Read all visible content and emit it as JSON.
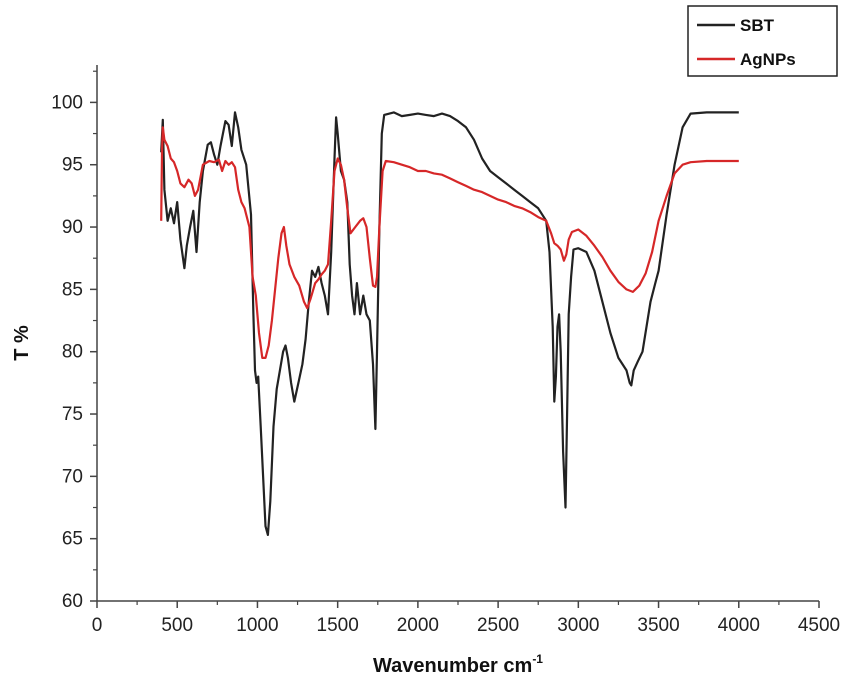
{
  "chart_data": {
    "type": "line",
    "xlabel": "Wavenumber cm",
    "xlabel_superscript": "-1",
    "ylabel": "T %",
    "xlim": [
      0,
      4500
    ],
    "ylim": [
      60,
      103
    ],
    "x_ticks": [
      0,
      500,
      1000,
      1500,
      2000,
      2500,
      3000,
      3500,
      4000,
      4500
    ],
    "y_ticks": [
      60,
      65,
      70,
      75,
      80,
      85,
      90,
      95,
      100
    ],
    "legend_position": "top-right",
    "grid": false,
    "series": [
      {
        "name": "SBT",
        "color": "#222222",
        "points": [
          [
            400,
            96
          ],
          [
            410,
            98.6
          ],
          [
            420,
            93
          ],
          [
            440,
            90.5
          ],
          [
            460,
            91.5
          ],
          [
            480,
            90.3
          ],
          [
            500,
            92
          ],
          [
            520,
            89
          ],
          [
            545,
            86.7
          ],
          [
            560,
            88.5
          ],
          [
            580,
            90
          ],
          [
            600,
            91.3
          ],
          [
            620,
            88
          ],
          [
            640,
            92
          ],
          [
            660,
            94.5
          ],
          [
            690,
            96.6
          ],
          [
            710,
            96.8
          ],
          [
            730,
            95.8
          ],
          [
            750,
            95
          ],
          [
            770,
            96.5
          ],
          [
            800,
            98.5
          ],
          [
            820,
            98.2
          ],
          [
            840,
            96.5
          ],
          [
            860,
            99.2
          ],
          [
            880,
            98
          ],
          [
            900,
            96.2
          ],
          [
            930,
            95
          ],
          [
            960,
            91
          ],
          [
            975,
            83
          ],
          [
            985,
            78.5
          ],
          [
            995,
            77.5
          ],
          [
            1005,
            78
          ],
          [
            1020,
            74
          ],
          [
            1035,
            70
          ],
          [
            1050,
            66
          ],
          [
            1065,
            65.3
          ],
          [
            1080,
            68
          ],
          [
            1100,
            74
          ],
          [
            1120,
            77
          ],
          [
            1140,
            78.5
          ],
          [
            1160,
            80
          ],
          [
            1175,
            80.5
          ],
          [
            1190,
            79.5
          ],
          [
            1210,
            77.5
          ],
          [
            1230,
            76
          ],
          [
            1255,
            77.5
          ],
          [
            1280,
            79
          ],
          [
            1300,
            81
          ],
          [
            1320,
            84
          ],
          [
            1340,
            86.5
          ],
          [
            1360,
            86
          ],
          [
            1380,
            86.8
          ],
          [
            1400,
            85.5
          ],
          [
            1420,
            84.5
          ],
          [
            1440,
            83
          ],
          [
            1460,
            88
          ],
          [
            1480,
            95.5
          ],
          [
            1490,
            98.8
          ],
          [
            1500,
            97.5
          ],
          [
            1520,
            94.5
          ],
          [
            1540,
            93.8
          ],
          [
            1560,
            92
          ],
          [
            1575,
            87
          ],
          [
            1590,
            84.5
          ],
          [
            1605,
            83
          ],
          [
            1620,
            85.5
          ],
          [
            1640,
            83
          ],
          [
            1660,
            84.5
          ],
          [
            1680,
            83
          ],
          [
            1700,
            82.5
          ],
          [
            1720,
            79
          ],
          [
            1735,
            73.8
          ],
          [
            1745,
            80
          ],
          [
            1760,
            90
          ],
          [
            1775,
            97.5
          ],
          [
            1790,
            99
          ],
          [
            1850,
            99.2
          ],
          [
            1900,
            98.9
          ],
          [
            1950,
            99
          ],
          [
            2000,
            99.1
          ],
          [
            2050,
            99
          ],
          [
            2100,
            98.9
          ],
          [
            2150,
            99.1
          ],
          [
            2200,
            98.9
          ],
          [
            2250,
            98.5
          ],
          [
            2300,
            98
          ],
          [
            2350,
            97
          ],
          [
            2400,
            95.5
          ],
          [
            2450,
            94.5
          ],
          [
            2500,
            94
          ],
          [
            2550,
            93.5
          ],
          [
            2600,
            93
          ],
          [
            2650,
            92.5
          ],
          [
            2700,
            92
          ],
          [
            2750,
            91.5
          ],
          [
            2800,
            90.5
          ],
          [
            2820,
            88
          ],
          [
            2840,
            82
          ],
          [
            2850,
            76
          ],
          [
            2860,
            78
          ],
          [
            2870,
            82
          ],
          [
            2880,
            83
          ],
          [
            2890,
            80
          ],
          [
            2905,
            72
          ],
          [
            2920,
            67.5
          ],
          [
            2930,
            75
          ],
          [
            2940,
            83
          ],
          [
            2955,
            86
          ],
          [
            2970,
            88.2
          ],
          [
            3000,
            88.3
          ],
          [
            3050,
            88
          ],
          [
            3100,
            86.5
          ],
          [
            3150,
            84
          ],
          [
            3200,
            81.5
          ],
          [
            3250,
            79.5
          ],
          [
            3300,
            78.5
          ],
          [
            3320,
            77.5
          ],
          [
            3330,
            77.3
          ],
          [
            3345,
            78.5
          ],
          [
            3370,
            79.2
          ],
          [
            3400,
            80
          ],
          [
            3450,
            84
          ],
          [
            3480,
            85.5
          ],
          [
            3500,
            86.5
          ],
          [
            3550,
            91
          ],
          [
            3600,
            95
          ],
          [
            3650,
            98
          ],
          [
            3700,
            99.1
          ],
          [
            3800,
            99.2
          ],
          [
            3900,
            99.2
          ],
          [
            4000,
            99.2
          ]
        ]
      },
      {
        "name": "AgNPs",
        "color": "#d62728",
        "points": [
          [
            400,
            90.5
          ],
          [
            405,
            96
          ],
          [
            410,
            98
          ],
          [
            420,
            97
          ],
          [
            440,
            96.5
          ],
          [
            460,
            95.5
          ],
          [
            480,
            95.2
          ],
          [
            500,
            94.5
          ],
          [
            520,
            93.5
          ],
          [
            545,
            93.2
          ],
          [
            570,
            93.8
          ],
          [
            590,
            93.5
          ],
          [
            610,
            92.5
          ],
          [
            630,
            93
          ],
          [
            660,
            95
          ],
          [
            700,
            95.3
          ],
          [
            730,
            95.2
          ],
          [
            760,
            95.4
          ],
          [
            780,
            94.5
          ],
          [
            800,
            95.3
          ],
          [
            820,
            95
          ],
          [
            840,
            95.2
          ],
          [
            860,
            94.8
          ],
          [
            880,
            93
          ],
          [
            900,
            92
          ],
          [
            920,
            91.5
          ],
          [
            950,
            90
          ],
          [
            970,
            86
          ],
          [
            990,
            84.5
          ],
          [
            1010,
            81.5
          ],
          [
            1030,
            79.5
          ],
          [
            1050,
            79.5
          ],
          [
            1070,
            80.5
          ],
          [
            1090,
            82.5
          ],
          [
            1110,
            85
          ],
          [
            1130,
            87.5
          ],
          [
            1150,
            89.5
          ],
          [
            1165,
            90
          ],
          [
            1180,
            88.5
          ],
          [
            1200,
            87
          ],
          [
            1230,
            86
          ],
          [
            1260,
            85.3
          ],
          [
            1290,
            84
          ],
          [
            1310,
            83.5
          ],
          [
            1330,
            84.2
          ],
          [
            1360,
            85.5
          ],
          [
            1380,
            85.8
          ],
          [
            1400,
            86.2
          ],
          [
            1420,
            86.5
          ],
          [
            1440,
            87
          ],
          [
            1460,
            90.5
          ],
          [
            1480,
            94.5
          ],
          [
            1500,
            95.5
          ],
          [
            1520,
            95
          ],
          [
            1540,
            93.8
          ],
          [
            1560,
            91.5
          ],
          [
            1580,
            89.5
          ],
          [
            1610,
            90
          ],
          [
            1640,
            90.5
          ],
          [
            1660,
            90.7
          ],
          [
            1680,
            90
          ],
          [
            1700,
            87.5
          ],
          [
            1720,
            85.3
          ],
          [
            1735,
            85.2
          ],
          [
            1745,
            86
          ],
          [
            1760,
            90
          ],
          [
            1780,
            94.5
          ],
          [
            1800,
            95.3
          ],
          [
            1850,
            95.2
          ],
          [
            1900,
            95
          ],
          [
            1950,
            94.8
          ],
          [
            2000,
            94.5
          ],
          [
            2050,
            94.5
          ],
          [
            2100,
            94.3
          ],
          [
            2150,
            94.2
          ],
          [
            2200,
            93.9
          ],
          [
            2250,
            93.6
          ],
          [
            2300,
            93.3
          ],
          [
            2350,
            93
          ],
          [
            2400,
            92.8
          ],
          [
            2450,
            92.5
          ],
          [
            2500,
            92.2
          ],
          [
            2550,
            92
          ],
          [
            2600,
            91.7
          ],
          [
            2650,
            91.5
          ],
          [
            2700,
            91.2
          ],
          [
            2750,
            90.8
          ],
          [
            2800,
            90.5
          ],
          [
            2830,
            89.5
          ],
          [
            2850,
            88.7
          ],
          [
            2870,
            88.5
          ],
          [
            2890,
            88.2
          ],
          [
            2910,
            87.3
          ],
          [
            2925,
            87.8
          ],
          [
            2940,
            89
          ],
          [
            2960,
            89.6
          ],
          [
            3000,
            89.8
          ],
          [
            3050,
            89.3
          ],
          [
            3100,
            88.5
          ],
          [
            3150,
            87.6
          ],
          [
            3200,
            86.5
          ],
          [
            3250,
            85.6
          ],
          [
            3300,
            85
          ],
          [
            3340,
            84.8
          ],
          [
            3380,
            85.3
          ],
          [
            3420,
            86.3
          ],
          [
            3460,
            88
          ],
          [
            3500,
            90.5
          ],
          [
            3550,
            92.5
          ],
          [
            3600,
            94.3
          ],
          [
            3650,
            95
          ],
          [
            3700,
            95.2
          ],
          [
            3800,
            95.3
          ],
          [
            3900,
            95.3
          ],
          [
            4000,
            95.3
          ]
        ]
      }
    ]
  }
}
